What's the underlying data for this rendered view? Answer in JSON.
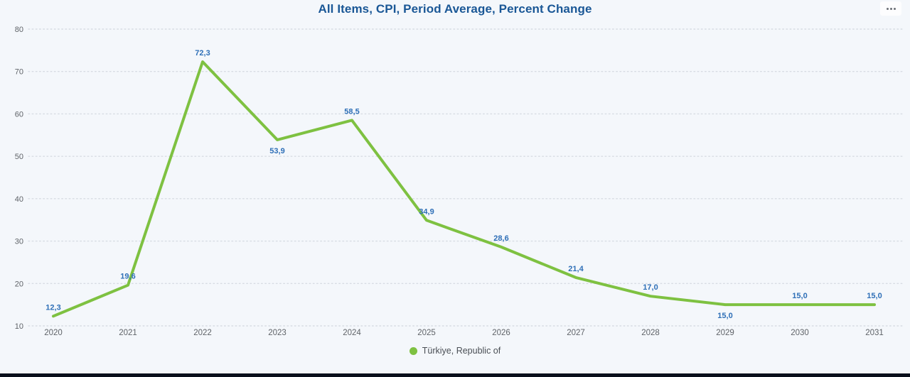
{
  "header": {
    "title": "All Items, CPI, Period Average, Percent Change",
    "more_options_icon": "ellipsis-menu"
  },
  "legend": {
    "marker_icon": "series-dot",
    "marker_color": "#7ec141",
    "label": "Türkiye, Republic of"
  },
  "chart_data": {
    "type": "line",
    "title": "All Items, CPI, Period Average, Percent Change",
    "categories": [
      "2020",
      "2021",
      "2022",
      "2023",
      "2024",
      "2025",
      "2026",
      "2027",
      "2028",
      "2029",
      "2030",
      "2031"
    ],
    "series": [
      {
        "name": "Türkiye, Republic of",
        "values": [
          12.3,
          19.6,
          72.3,
          53.9,
          58.5,
          34.9,
          28.6,
          21.4,
          17.0,
          15.0,
          15.0,
          15.0
        ],
        "labels": [
          "12,3",
          "19,6",
          "72,3",
          "53,9",
          "58,5",
          "34,9",
          "28,6",
          "21,4",
          "17,0",
          "15,0",
          "15,0",
          "15,0"
        ],
        "color": "#7ec141"
      }
    ],
    "ylim": [
      10,
      80
    ],
    "yticks": [
      10,
      20,
      30,
      40,
      50,
      60,
      70,
      80
    ],
    "xlabel": "",
    "ylabel": "",
    "grid": "horizontal-dotted",
    "legend_position": "bottom-center",
    "label_below_indices": [
      3,
      9
    ],
    "colors": {
      "line": "#7ec141",
      "data_label": "#2e6fb7",
      "axis_text": "#5f6368",
      "gridline": "#d7dce3",
      "background": "#f4f7fb"
    }
  }
}
